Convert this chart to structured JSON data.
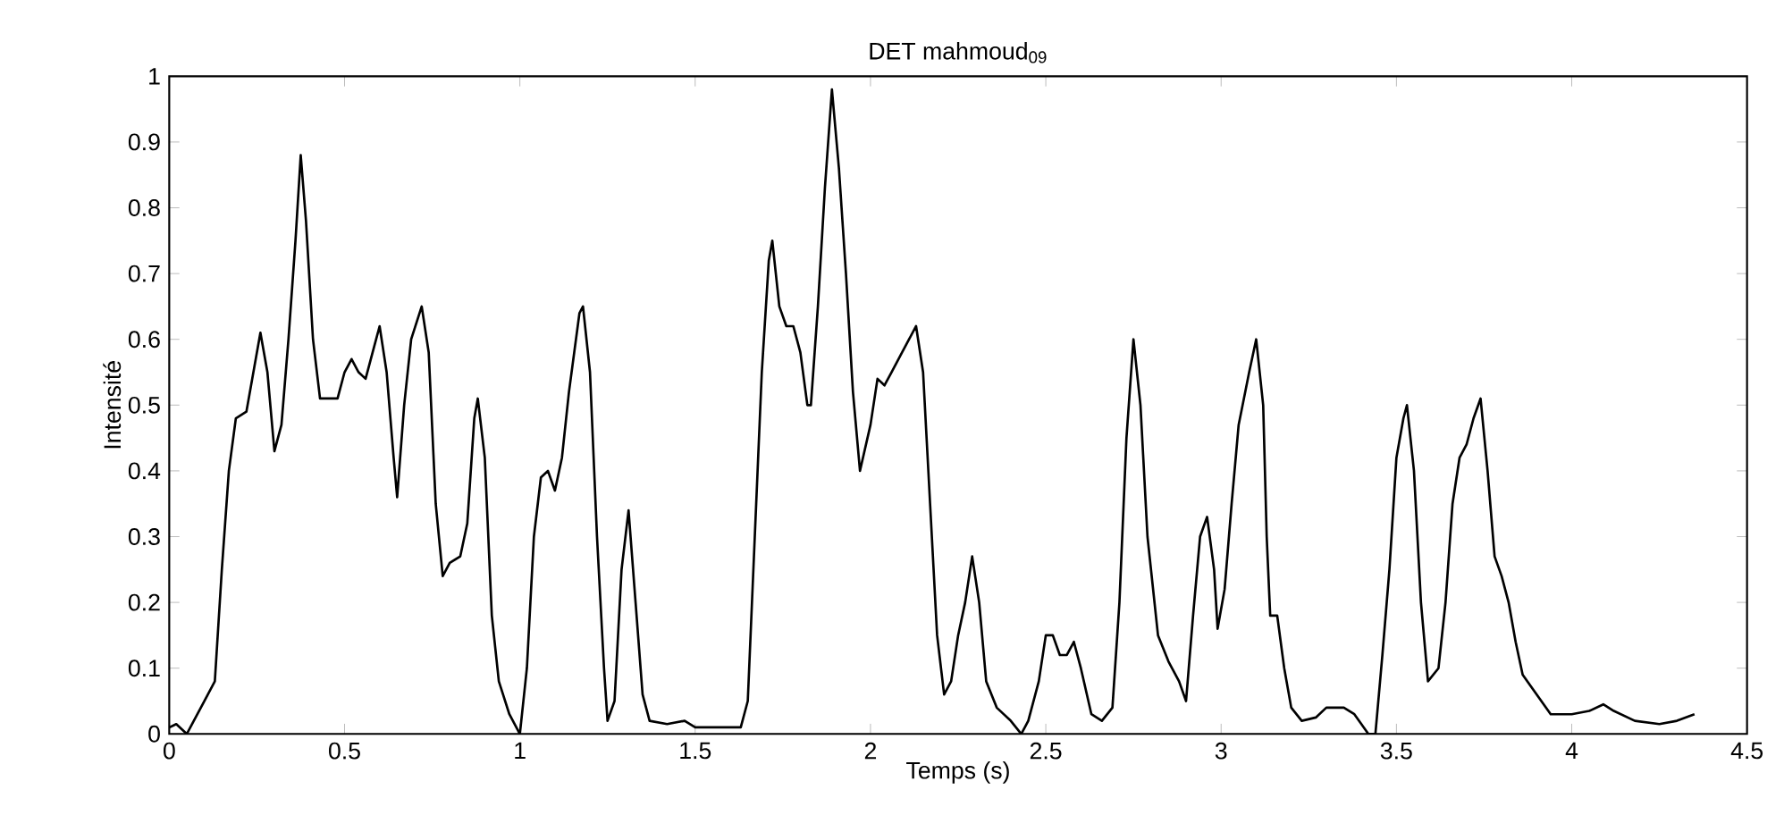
{
  "chart_data": {
    "type": "line",
    "title": "DET mahmoud$_{09}$",
    "xlabel": "Temps (s)",
    "ylabel": "Intensité",
    "xlim": [
      0,
      4.5
    ],
    "ylim": [
      0,
      1
    ],
    "xticks": [
      0,
      0.5,
      1,
      1.5,
      2,
      2.5,
      3,
      3.5,
      4,
      4.5
    ],
    "yticks": [
      0,
      0.1,
      0.2,
      0.3,
      0.4,
      0.5,
      0.6,
      0.7,
      0.8,
      0.9,
      1
    ],
    "x": [
      0,
      0.02,
      0.05,
      0.07,
      0.1,
      0.13,
      0.15,
      0.17,
      0.19,
      0.22,
      0.24,
      0.26,
      0.28,
      0.3,
      0.32,
      0.34,
      0.36,
      0.375,
      0.39,
      0.41,
      0.43,
      0.46,
      0.48,
      0.5,
      0.52,
      0.54,
      0.56,
      0.59,
      0.6,
      0.62,
      0.64,
      0.65,
      0.67,
      0.69,
      0.72,
      0.74,
      0.76,
      0.78,
      0.8,
      0.83,
      0.85,
      0.87,
      0.88,
      0.9,
      0.92,
      0.94,
      0.97,
      1.0,
      1.02,
      1.04,
      1.06,
      1.08,
      1.1,
      1.12,
      1.14,
      1.17,
      1.18,
      1.2,
      1.22,
      1.24,
      1.25,
      1.27,
      1.29,
      1.31,
      1.33,
      1.35,
      1.37,
      1.42,
      1.47,
      1.5,
      1.55,
      1.6,
      1.63,
      1.65,
      1.67,
      1.69,
      1.71,
      1.72,
      1.74,
      1.76,
      1.78,
      1.8,
      1.82,
      1.83,
      1.85,
      1.87,
      1.89,
      1.91,
      1.93,
      1.95,
      1.97,
      2.0,
      2.02,
      2.04,
      2.06,
      2.09,
      2.11,
      2.13,
      2.15,
      2.17,
      2.19,
      2.21,
      2.23,
      2.25,
      2.27,
      2.29,
      2.31,
      2.33,
      2.36,
      2.4,
      2.43,
      2.45,
      2.48,
      2.5,
      2.52,
      2.54,
      2.56,
      2.58,
      2.6,
      2.63,
      2.66,
      2.69,
      2.71,
      2.73,
      2.75,
      2.77,
      2.79,
      2.82,
      2.85,
      2.88,
      2.9,
      2.92,
      2.94,
      2.96,
      2.98,
      2.99,
      3.01,
      3.03,
      3.05,
      3.08,
      3.1,
      3.12,
      3.13,
      3.14,
      3.16,
      3.18,
      3.2,
      3.23,
      3.27,
      3.3,
      3.35,
      3.38,
      3.42,
      3.44,
      3.46,
      3.48,
      3.5,
      3.52,
      3.53,
      3.55,
      3.57,
      3.59,
      3.62,
      3.64,
      3.66,
      3.68,
      3.7,
      3.72,
      3.74,
      3.76,
      3.78,
      3.8,
      3.82,
      3.84,
      3.86,
      3.9,
      3.94,
      4.0,
      4.05,
      4.09,
      4.12,
      4.18,
      4.25,
      4.3,
      4.35
    ],
    "series": [
      {
        "color": "#000000",
        "values": [
          0.01,
          0.015,
          0.0,
          0.02,
          0.05,
          0.08,
          0.25,
          0.4,
          0.48,
          0.49,
          0.55,
          0.61,
          0.55,
          0.43,
          0.47,
          0.6,
          0.75,
          0.88,
          0.78,
          0.6,
          0.51,
          0.51,
          0.51,
          0.55,
          0.57,
          0.55,
          0.54,
          0.6,
          0.62,
          0.55,
          0.42,
          0.36,
          0.5,
          0.6,
          0.65,
          0.58,
          0.35,
          0.24,
          0.26,
          0.27,
          0.32,
          0.48,
          0.51,
          0.42,
          0.18,
          0.08,
          0.03,
          0.0,
          0.1,
          0.3,
          0.39,
          0.4,
          0.37,
          0.42,
          0.52,
          0.64,
          0.65,
          0.55,
          0.3,
          0.1,
          0.02,
          0.05,
          0.25,
          0.34,
          0.2,
          0.06,
          0.02,
          0.015,
          0.02,
          0.01,
          0.01,
          0.01,
          0.01,
          0.05,
          0.3,
          0.55,
          0.72,
          0.75,
          0.65,
          0.62,
          0.62,
          0.58,
          0.5,
          0.5,
          0.65,
          0.83,
          0.98,
          0.86,
          0.7,
          0.52,
          0.4,
          0.47,
          0.54,
          0.53,
          0.55,
          0.58,
          0.6,
          0.62,
          0.55,
          0.35,
          0.15,
          0.06,
          0.08,
          0.15,
          0.2,
          0.27,
          0.2,
          0.08,
          0.04,
          0.02,
          0.0,
          0.02,
          0.08,
          0.15,
          0.15,
          0.12,
          0.12,
          0.14,
          0.1,
          0.03,
          0.02,
          0.04,
          0.2,
          0.45,
          0.6,
          0.5,
          0.3,
          0.15,
          0.11,
          0.08,
          0.05,
          0.18,
          0.3,
          0.33,
          0.25,
          0.16,
          0.22,
          0.35,
          0.47,
          0.55,
          0.6,
          0.5,
          0.3,
          0.18,
          0.18,
          0.1,
          0.04,
          0.02,
          0.025,
          0.04,
          0.04,
          0.03,
          0.0,
          0.0,
          0.12,
          0.25,
          0.42,
          0.48,
          0.5,
          0.4,
          0.2,
          0.08,
          0.1,
          0.2,
          0.35,
          0.42,
          0.44,
          0.48,
          0.51,
          0.4,
          0.27,
          0.24,
          0.2,
          0.14,
          0.09,
          0.06,
          0.03,
          0.03,
          0.035,
          0.045,
          0.035,
          0.02,
          0.015,
          0.02,
          0.03
        ]
      }
    ]
  }
}
